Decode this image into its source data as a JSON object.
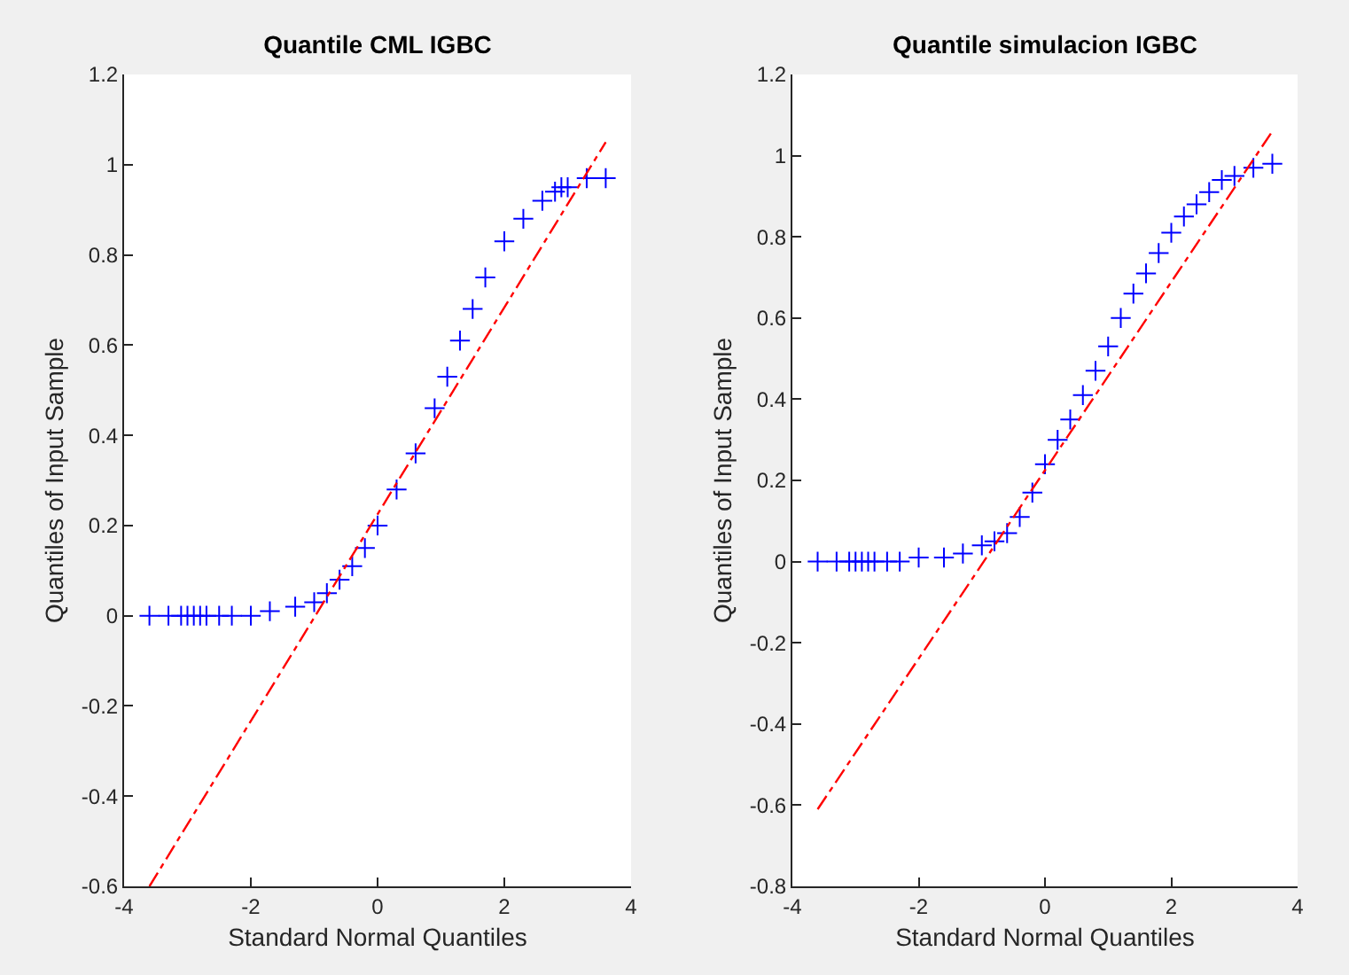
{
  "chart_data": [
    {
      "type": "scatter",
      "title": "Quantile CML IGBC",
      "xlabel": "Standard Normal Quantiles",
      "ylabel": "Quantiles of Input Sample",
      "xlim": [
        -4,
        4
      ],
      "xticks": [
        -4,
        -2,
        0,
        2,
        4
      ],
      "ylim": [
        -0.6,
        1.2
      ],
      "yticks": [
        -0.6,
        -0.4,
        -0.2,
        0,
        0.2,
        0.4,
        0.6,
        0.8,
        1,
        1.2
      ],
      "grid": false,
      "marker": "cross",
      "series": [
        {
          "color": "#0000ff",
          "x": [
            -3.6,
            -3.3,
            -3.1,
            -3.0,
            -2.9,
            -2.8,
            -2.7,
            -2.5,
            -2.3,
            -2.0,
            -1.7,
            -1.3,
            -1.0,
            -0.8,
            -0.6,
            -0.4,
            -0.2,
            0,
            0.3,
            0.6,
            0.9,
            1.1,
            1.3,
            1.5,
            1.7,
            2.0,
            2.3,
            2.6,
            2.8,
            2.9,
            3.0,
            3.3,
            3.6
          ],
          "values": [
            0,
            0,
            0,
            0,
            0,
            0,
            0,
            0,
            0,
            0,
            0.01,
            0.02,
            0.03,
            0.05,
            0.08,
            0.11,
            0.15,
            0.2,
            0.28,
            0.36,
            0.46,
            0.53,
            0.61,
            0.68,
            0.75,
            0.83,
            0.88,
            0.92,
            0.94,
            0.95,
            0.95,
            0.97,
            0.97
          ]
        },
        {
          "type": "line",
          "color": "#ff0000",
          "line_style": "dashed",
          "marker": "none",
          "x": [
            -3.6,
            3.6
          ],
          "values": [
            -0.6,
            1.05
          ]
        }
      ]
    },
    {
      "type": "scatter",
      "title": "Quantile simulacion IGBC",
      "xlabel": "Standard Normal Quantiles",
      "ylabel": "Quantiles of Input Sample",
      "xlim": [
        -4,
        4
      ],
      "xticks": [
        -4,
        -2,
        0,
        2,
        4
      ],
      "ylim": [
        -0.8,
        1.2
      ],
      "yticks": [
        -0.8,
        -0.6,
        -0.4,
        -0.2,
        0,
        0.2,
        0.4,
        0.6,
        0.8,
        1,
        1.2
      ],
      "grid": false,
      "marker": "cross",
      "series": [
        {
          "color": "#0000ff",
          "x": [
            -3.6,
            -3.3,
            -3.1,
            -3.0,
            -2.9,
            -2.8,
            -2.7,
            -2.5,
            -2.3,
            -2.0,
            -1.6,
            -1.3,
            -1.0,
            -0.8,
            -0.6,
            -0.4,
            -0.2,
            0,
            0.2,
            0.4,
            0.6,
            0.8,
            1.0,
            1.2,
            1.4,
            1.6,
            1.8,
            2.0,
            2.2,
            2.4,
            2.6,
            2.8,
            3.0,
            3.3,
            3.6
          ],
          "values": [
            0,
            0,
            0,
            0,
            0,
            0,
            0,
            0,
            0,
            0.01,
            0.01,
            0.02,
            0.04,
            0.05,
            0.07,
            0.11,
            0.17,
            0.24,
            0.3,
            0.35,
            0.41,
            0.47,
            0.53,
            0.6,
            0.66,
            0.71,
            0.76,
            0.81,
            0.85,
            0.88,
            0.91,
            0.94,
            0.95,
            0.97,
            0.98
          ]
        },
        {
          "type": "line",
          "color": "#ff0000",
          "line_style": "dashed",
          "marker": "none",
          "x": [
            -3.6,
            3.6
          ],
          "values": [
            -0.61,
            1.06
          ]
        }
      ]
    }
  ]
}
